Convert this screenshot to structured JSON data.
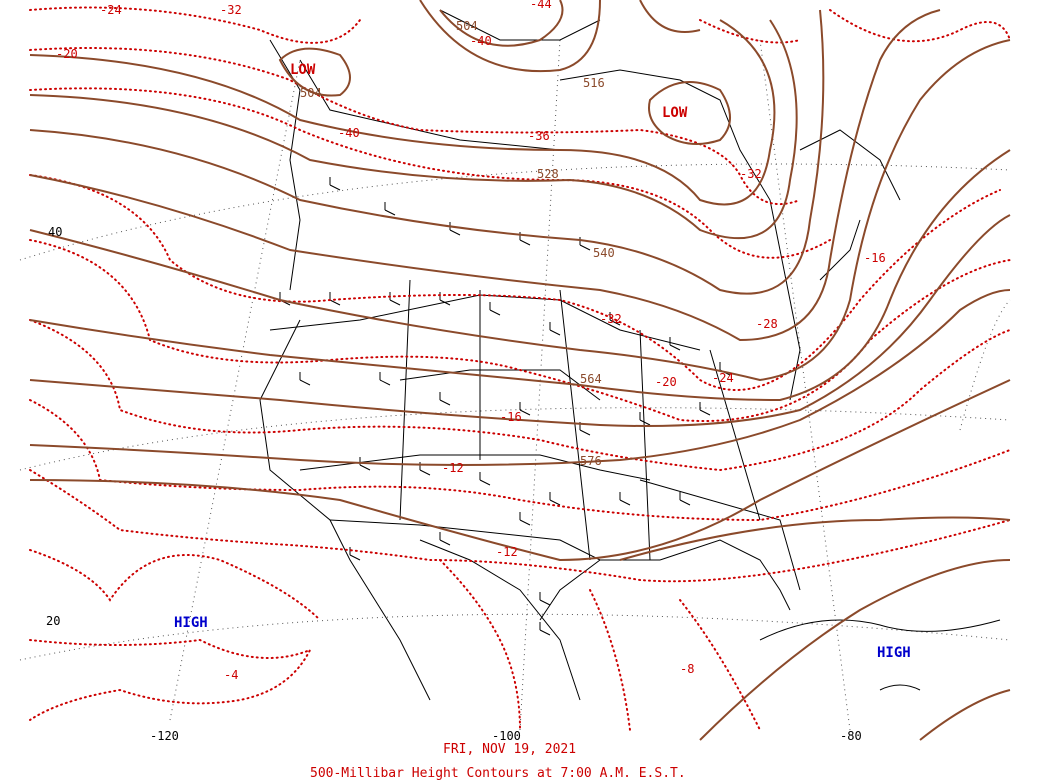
{
  "map": {
    "date_caption": "FRI, NOV 19, 2021",
    "title_caption": "500-Millibar Height Contours at 7:00 A.M. E.S.T.",
    "colors": {
      "height_contour": "#8b4a2b",
      "temperature_isotherm": "#cc0000",
      "low_label": "#cc0000",
      "high_label": "#0000cc",
      "map_lines": "#000000",
      "grid_lines": "#555555"
    },
    "pressure_systems": [
      {
        "type": "LOW",
        "label": "LOW"
      },
      {
        "type": "LOW",
        "label": "LOW"
      },
      {
        "type": "HIGH",
        "label": "HIGH"
      },
      {
        "type": "HIGH",
        "label": "HIGH"
      }
    ],
    "height_contour_labels": [
      "504",
      "516",
      "504",
      "528",
      "540",
      "564",
      "576"
    ],
    "temperature_labels": [
      "-24",
      "-32",
      "-44",
      "-20",
      "-40",
      "-40",
      "-36",
      "-32",
      "-16",
      "-28",
      "-20",
      "-24",
      "-16",
      "-12",
      "-12",
      "-4",
      "-8",
      "-32"
    ],
    "latitude_labels": [
      "40",
      "20"
    ],
    "longitude_labels": [
      "-120",
      "-100",
      "-80"
    ]
  }
}
